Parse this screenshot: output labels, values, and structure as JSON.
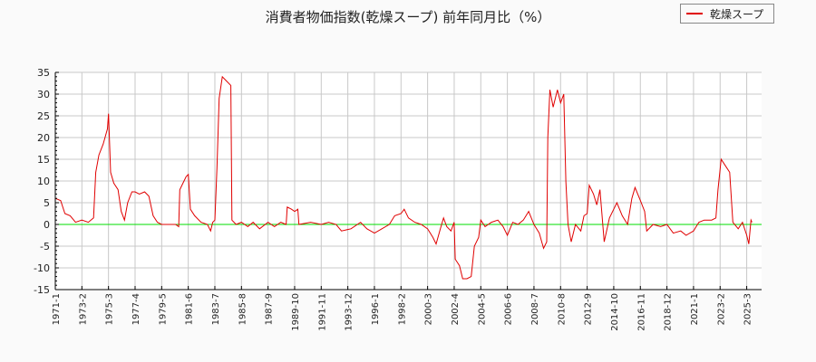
{
  "chart": {
    "title": "消費者物価指数(乾燥スープ) 前年同月比（%）",
    "legend_label": "乾燥スープ",
    "line_color": "#e00000",
    "zero_line_color": "#00dd00",
    "grid_color": "#c8c8c8"
  },
  "chart_data": {
    "type": "line",
    "title": "消費者物価指数(乾燥スープ) 前年同月比（%）",
    "xlabel": "",
    "ylabel": "",
    "ylim": [
      -15,
      35
    ],
    "yticks": [
      35,
      30,
      25,
      20,
      15,
      10,
      5,
      0,
      -5,
      -10,
      -15
    ],
    "xticks": [
      "1971-1",
      "1973-2",
      "1975-3",
      "1977-4",
      "1979-5",
      "1981-6",
      "1983-7",
      "1985-8",
      "1987-9",
      "1989-10",
      "1991-11",
      "1993-12",
      "1996-1",
      "1998-2",
      "2000-3",
      "2002-4",
      "2004-5",
      "2006-6",
      "2008-7",
      "2010-8",
      "2012-9",
      "2014-10",
      "2016-11",
      "2018-12",
      "2021-1",
      "2023-2",
      "2025-3"
    ],
    "grid": true,
    "legend_position": "top-right",
    "series": [
      {
        "name": "乾燥スープ",
        "color": "#e00000",
        "points": [
          [
            "1971-1",
            6.0
          ],
          [
            "1971-6",
            5.5
          ],
          [
            "1971-10",
            2.5
          ],
          [
            "1972-3",
            2.0
          ],
          [
            "1972-8",
            0.5
          ],
          [
            "1973-2",
            1.0
          ],
          [
            "1973-8",
            0.5
          ],
          [
            "1974-1",
            1.5
          ],
          [
            "1974-3",
            12.0
          ],
          [
            "1974-6",
            16.0
          ],
          [
            "1974-10",
            18.5
          ],
          [
            "1975-2",
            22.0
          ],
          [
            "1975-3",
            25.5
          ],
          [
            "1975-5",
            12.0
          ],
          [
            "1975-8",
            9.5
          ],
          [
            "1975-12",
            8.0
          ],
          [
            "1976-3",
            3.0
          ],
          [
            "1976-6",
            1.0
          ],
          [
            "1976-9",
            5.0
          ],
          [
            "1977-1",
            7.5
          ],
          [
            "1977-4",
            7.5
          ],
          [
            "1977-8",
            7.0
          ],
          [
            "1978-1",
            7.5
          ],
          [
            "1978-5",
            6.5
          ],
          [
            "1978-9",
            2.0
          ],
          [
            "1979-1",
            0.5
          ],
          [
            "1979-5",
            0.0
          ],
          [
            "1979-10",
            0.0
          ],
          [
            "1980-6",
            0.0
          ],
          [
            "1980-9",
            -0.5
          ],
          [
            "1980-10",
            8.0
          ],
          [
            "1981-1",
            9.5
          ],
          [
            "1981-4",
            11.0
          ],
          [
            "1981-6",
            11.5
          ],
          [
            "1981-8",
            3.5
          ],
          [
            "1981-12",
            2.0
          ],
          [
            "1982-6",
            0.5
          ],
          [
            "1982-12",
            0.0
          ],
          [
            "1983-3",
            -1.5
          ],
          [
            "1983-5",
            0.5
          ],
          [
            "1983-7",
            1.0
          ],
          [
            "1983-9",
            13.0
          ],
          [
            "1983-11",
            29.0
          ],
          [
            "1984-2",
            34.0
          ],
          [
            "1984-6",
            33.0
          ],
          [
            "1984-10",
            32.0
          ],
          [
            "1984-11",
            1.0
          ],
          [
            "1985-3",
            0.0
          ],
          [
            "1985-8",
            0.5
          ],
          [
            "1986-2",
            -0.5
          ],
          [
            "1986-7",
            0.5
          ],
          [
            "1987-1",
            -1.0
          ],
          [
            "1987-9",
            0.5
          ],
          [
            "1988-3",
            -0.5
          ],
          [
            "1988-9",
            0.5
          ],
          [
            "1989-2",
            0.0
          ],
          [
            "1989-3",
            4.0
          ],
          [
            "1989-7",
            3.5
          ],
          [
            "1989-10",
            3.0
          ],
          [
            "1990-1",
            3.5
          ],
          [
            "1990-2",
            0.0
          ],
          [
            "1991-1",
            0.5
          ],
          [
            "1991-11",
            0.0
          ],
          [
            "1992-6",
            0.5
          ],
          [
            "1993-1",
            0.0
          ],
          [
            "1993-6",
            -1.5
          ],
          [
            "1994-3",
            -1.0
          ],
          [
            "1994-12",
            0.5
          ],
          [
            "1995-6",
            -1.0
          ],
          [
            "1996-1",
            -2.0
          ],
          [
            "1996-8",
            -1.0
          ],
          [
            "1997-3",
            0.0
          ],
          [
            "1997-8",
            2.0
          ],
          [
            "1998-2",
            2.5
          ],
          [
            "1998-5",
            3.5
          ],
          [
            "1998-9",
            1.5
          ],
          [
            "1999-3",
            0.5
          ],
          [
            "1999-9",
            0.0
          ],
          [
            "2000-3",
            -1.0
          ],
          [
            "2000-8",
            -3.0
          ],
          [
            "2000-11",
            -4.5
          ],
          [
            "2001-3",
            -1.0
          ],
          [
            "2001-6",
            1.5
          ],
          [
            "2001-9",
            -0.5
          ],
          [
            "2002-1",
            -1.5
          ],
          [
            "2002-4",
            0.5
          ],
          [
            "2002-5",
            -8.0
          ],
          [
            "2002-9",
            -9.5
          ],
          [
            "2002-12",
            -12.5
          ],
          [
            "2003-4",
            -12.5
          ],
          [
            "2003-8",
            -12.0
          ],
          [
            "2003-11",
            -5.0
          ],
          [
            "2004-3",
            -3.0
          ],
          [
            "2004-5",
            1.0
          ],
          [
            "2004-9",
            -0.5
          ],
          [
            "2005-3",
            0.5
          ],
          [
            "2005-9",
            1.0
          ],
          [
            "2006-2",
            -0.5
          ],
          [
            "2006-6",
            -2.5
          ],
          [
            "2006-11",
            0.5
          ],
          [
            "2007-4",
            0.0
          ],
          [
            "2007-9",
            1.0
          ],
          [
            "2008-2",
            3.0
          ],
          [
            "2008-7",
            0.0
          ],
          [
            "2008-12",
            -2.0
          ],
          [
            "2009-4",
            -5.5
          ],
          [
            "2009-7",
            -4.0
          ],
          [
            "2009-8",
            20.0
          ],
          [
            "2009-10",
            31.0
          ],
          [
            "2010-1",
            27.0
          ],
          [
            "2010-5",
            31.0
          ],
          [
            "2010-8",
            28.0
          ],
          [
            "2010-11",
            30.0
          ],
          [
            "2011-1",
            10.0
          ],
          [
            "2011-3",
            0.0
          ],
          [
            "2011-6",
            -4.0
          ],
          [
            "2011-10",
            0.0
          ],
          [
            "2012-3",
            -1.5
          ],
          [
            "2012-6",
            2.0
          ],
          [
            "2012-9",
            2.5
          ],
          [
            "2012-11",
            9.0
          ],
          [
            "2013-3",
            7.0
          ],
          [
            "2013-6",
            4.5
          ],
          [
            "2013-9",
            8.0
          ],
          [
            "2014-1",
            -4.0
          ],
          [
            "2014-6",
            1.5
          ],
          [
            "2014-10",
            3.5
          ],
          [
            "2015-1",
            5.0
          ],
          [
            "2015-6",
            2.0
          ],
          [
            "2015-11",
            0.0
          ],
          [
            "2016-3",
            6.0
          ],
          [
            "2016-6",
            8.5
          ],
          [
            "2016-11",
            5.5
          ],
          [
            "2017-3",
            3.0
          ],
          [
            "2017-5",
            -1.5
          ],
          [
            "2017-11",
            0.0
          ],
          [
            "2018-6",
            -0.5
          ],
          [
            "2018-12",
            0.0
          ],
          [
            "2019-6",
            -2.0
          ],
          [
            "2020-1",
            -1.5
          ],
          [
            "2020-6",
            -2.5
          ],
          [
            "2021-1",
            -1.5
          ],
          [
            "2021-6",
            0.5
          ],
          [
            "2021-11",
            1.0
          ],
          [
            "2022-6",
            1.0
          ],
          [
            "2022-10",
            1.5
          ],
          [
            "2022-12",
            8.0
          ],
          [
            "2023-3",
            15.0
          ],
          [
            "2023-7",
            13.5
          ],
          [
            "2023-11",
            12.0
          ],
          [
            "2024-2",
            0.5
          ],
          [
            "2024-7",
            -1.0
          ],
          [
            "2024-11",
            0.5
          ],
          [
            "2025-3",
            -2.5
          ],
          [
            "2025-5",
            -4.5
          ],
          [
            "2025-7",
            1.0
          ],
          [
            "2025-8",
            0.5
          ]
        ]
      }
    ]
  }
}
